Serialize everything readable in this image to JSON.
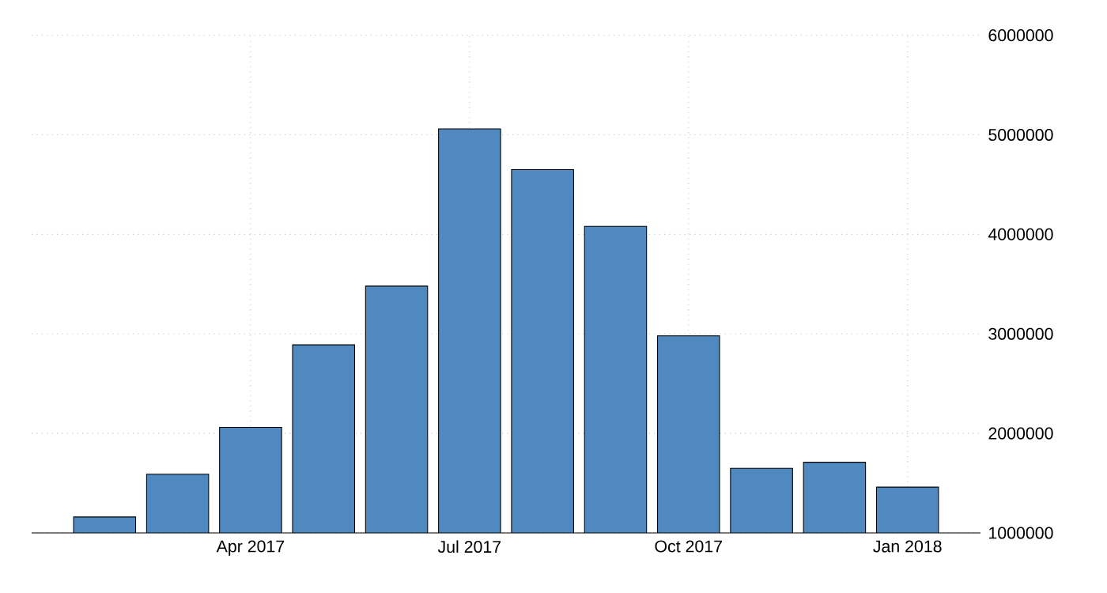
{
  "chart_data": {
    "type": "bar",
    "categories": [
      null,
      null,
      "Apr 2017",
      null,
      null,
      "Jul 2017",
      null,
      null,
      "Oct 2017",
      null,
      null,
      "Jan 2018"
    ],
    "values": [
      1160000,
      1590000,
      2060000,
      2890000,
      3480000,
      5060000,
      4650000,
      4080000,
      2980000,
      1650000,
      1710000,
      1460000
    ],
    "color": "#4f89c0",
    "ylim": [
      1000000,
      6000000
    ],
    "yticks": [
      1000000,
      2000000,
      3000000,
      4000000,
      5000000,
      6000000
    ],
    "grid": true
  }
}
